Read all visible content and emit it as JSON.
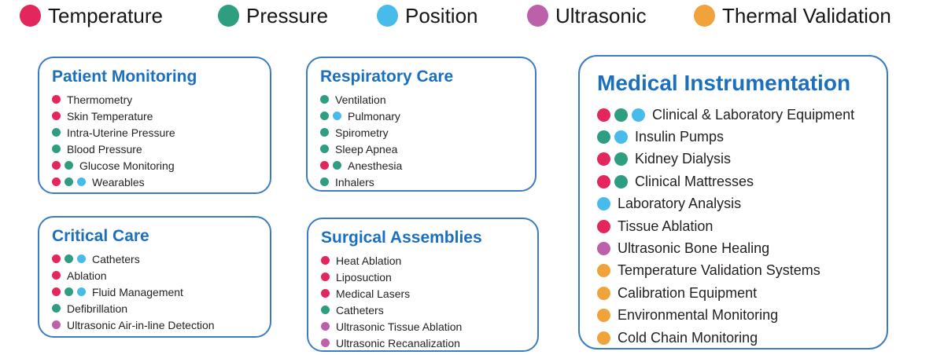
{
  "palette": {
    "temperature": "#E3265B",
    "pressure": "#2F9E80",
    "position": "#47BCEA",
    "ultrasonic": "#BC60A9",
    "thermal": "#F0A23B"
  },
  "colors": {
    "card_title": "#1B6FBF",
    "card_border": "#3B7CC4",
    "item_text": "#231F20",
    "legend_text": "#161616"
  },
  "legend": {
    "items": [
      {
        "key": "temperature",
        "label": "Temperature"
      },
      {
        "key": "pressure",
        "label": "Pressure"
      },
      {
        "key": "position",
        "label": "Position"
      },
      {
        "key": "ultrasonic",
        "label": "Ultrasonic"
      },
      {
        "key": "thermal",
        "label": "Thermal Validation"
      }
    ]
  },
  "boxes": [
    {
      "title": "Patient Monitoring",
      "items": [
        {
          "label": "Thermometry",
          "dots": [
            "temperature"
          ]
        },
        {
          "label": "Skin Temperature",
          "dots": [
            "temperature"
          ]
        },
        {
          "label": "Intra-Uterine Pressure",
          "dots": [
            "pressure"
          ]
        },
        {
          "label": "Blood Pressure",
          "dots": [
            "pressure"
          ]
        },
        {
          "label": "Glucose Monitoring",
          "dots": [
            "temperature",
            "pressure"
          ]
        },
        {
          "label": "Wearables",
          "dots": [
            "temperature",
            "pressure",
            "position"
          ]
        }
      ]
    },
    {
      "title": "Critical Care",
      "items": [
        {
          "label": "Catheters",
          "dots": [
            "temperature",
            "pressure",
            "position"
          ]
        },
        {
          "label": "Ablation",
          "dots": [
            "temperature"
          ]
        },
        {
          "label": "Fluid Management",
          "dots": [
            "temperature",
            "pressure",
            "position"
          ]
        },
        {
          "label": "Defibrillation",
          "dots": [
            "pressure"
          ]
        },
        {
          "label": "Ultrasonic Air-in-line Detection",
          "dots": [
            "ultrasonic"
          ]
        }
      ]
    },
    {
      "title": "Respiratory Care",
      "items": [
        {
          "label": "Ventilation",
          "dots": [
            "pressure"
          ]
        },
        {
          "label": "Pulmonary",
          "dots": [
            "pressure",
            "position"
          ]
        },
        {
          "label": "Spirometry",
          "dots": [
            "pressure"
          ]
        },
        {
          "label": "Sleep Apnea",
          "dots": [
            "pressure"
          ]
        },
        {
          "label": "Anesthesia",
          "dots": [
            "temperature",
            "pressure"
          ]
        },
        {
          "label": "Inhalers",
          "dots": [
            "pressure"
          ]
        }
      ]
    },
    {
      "title": "Surgical Assemblies",
      "items": [
        {
          "label": "Heat Ablation",
          "dots": [
            "temperature"
          ]
        },
        {
          "label": "Liposuction",
          "dots": [
            "temperature"
          ]
        },
        {
          "label": "Medical Lasers",
          "dots": [
            "temperature"
          ]
        },
        {
          "label": "Catheters",
          "dots": [
            "pressure"
          ]
        },
        {
          "label": "Ultrasonic Tissue Ablation",
          "dots": [
            "ultrasonic"
          ]
        },
        {
          "label": "Ultrasonic Recanalization",
          "dots": [
            "ultrasonic"
          ]
        }
      ]
    },
    {
      "title": "Medical Instrumentation",
      "items": [
        {
          "label": "Clinical & Laboratory Equipment",
          "dots": [
            "temperature",
            "pressure",
            "position"
          ]
        },
        {
          "label": "Insulin Pumps",
          "dots": [
            "pressure",
            "position"
          ]
        },
        {
          "label": "Kidney Dialysis",
          "dots": [
            "temperature",
            "pressure"
          ]
        },
        {
          "label": "Clinical Mattresses",
          "dots": [
            "temperature",
            "pressure"
          ]
        },
        {
          "label": "Laboratory Analysis",
          "dots": [
            "position"
          ]
        },
        {
          "label": "Tissue Ablation",
          "dots": [
            "temperature"
          ]
        },
        {
          "label": "Ultrasonic Bone Healing",
          "dots": [
            "ultrasonic"
          ]
        },
        {
          "label": "Temperature Validation Systems",
          "dots": [
            "thermal"
          ]
        },
        {
          "label": "Calibration Equipment",
          "dots": [
            "thermal"
          ]
        },
        {
          "label": "Environmental Monitoring",
          "dots": [
            "thermal"
          ]
        },
        {
          "label": "Cold Chain Monitoring",
          "dots": [
            "thermal"
          ]
        }
      ]
    }
  ]
}
